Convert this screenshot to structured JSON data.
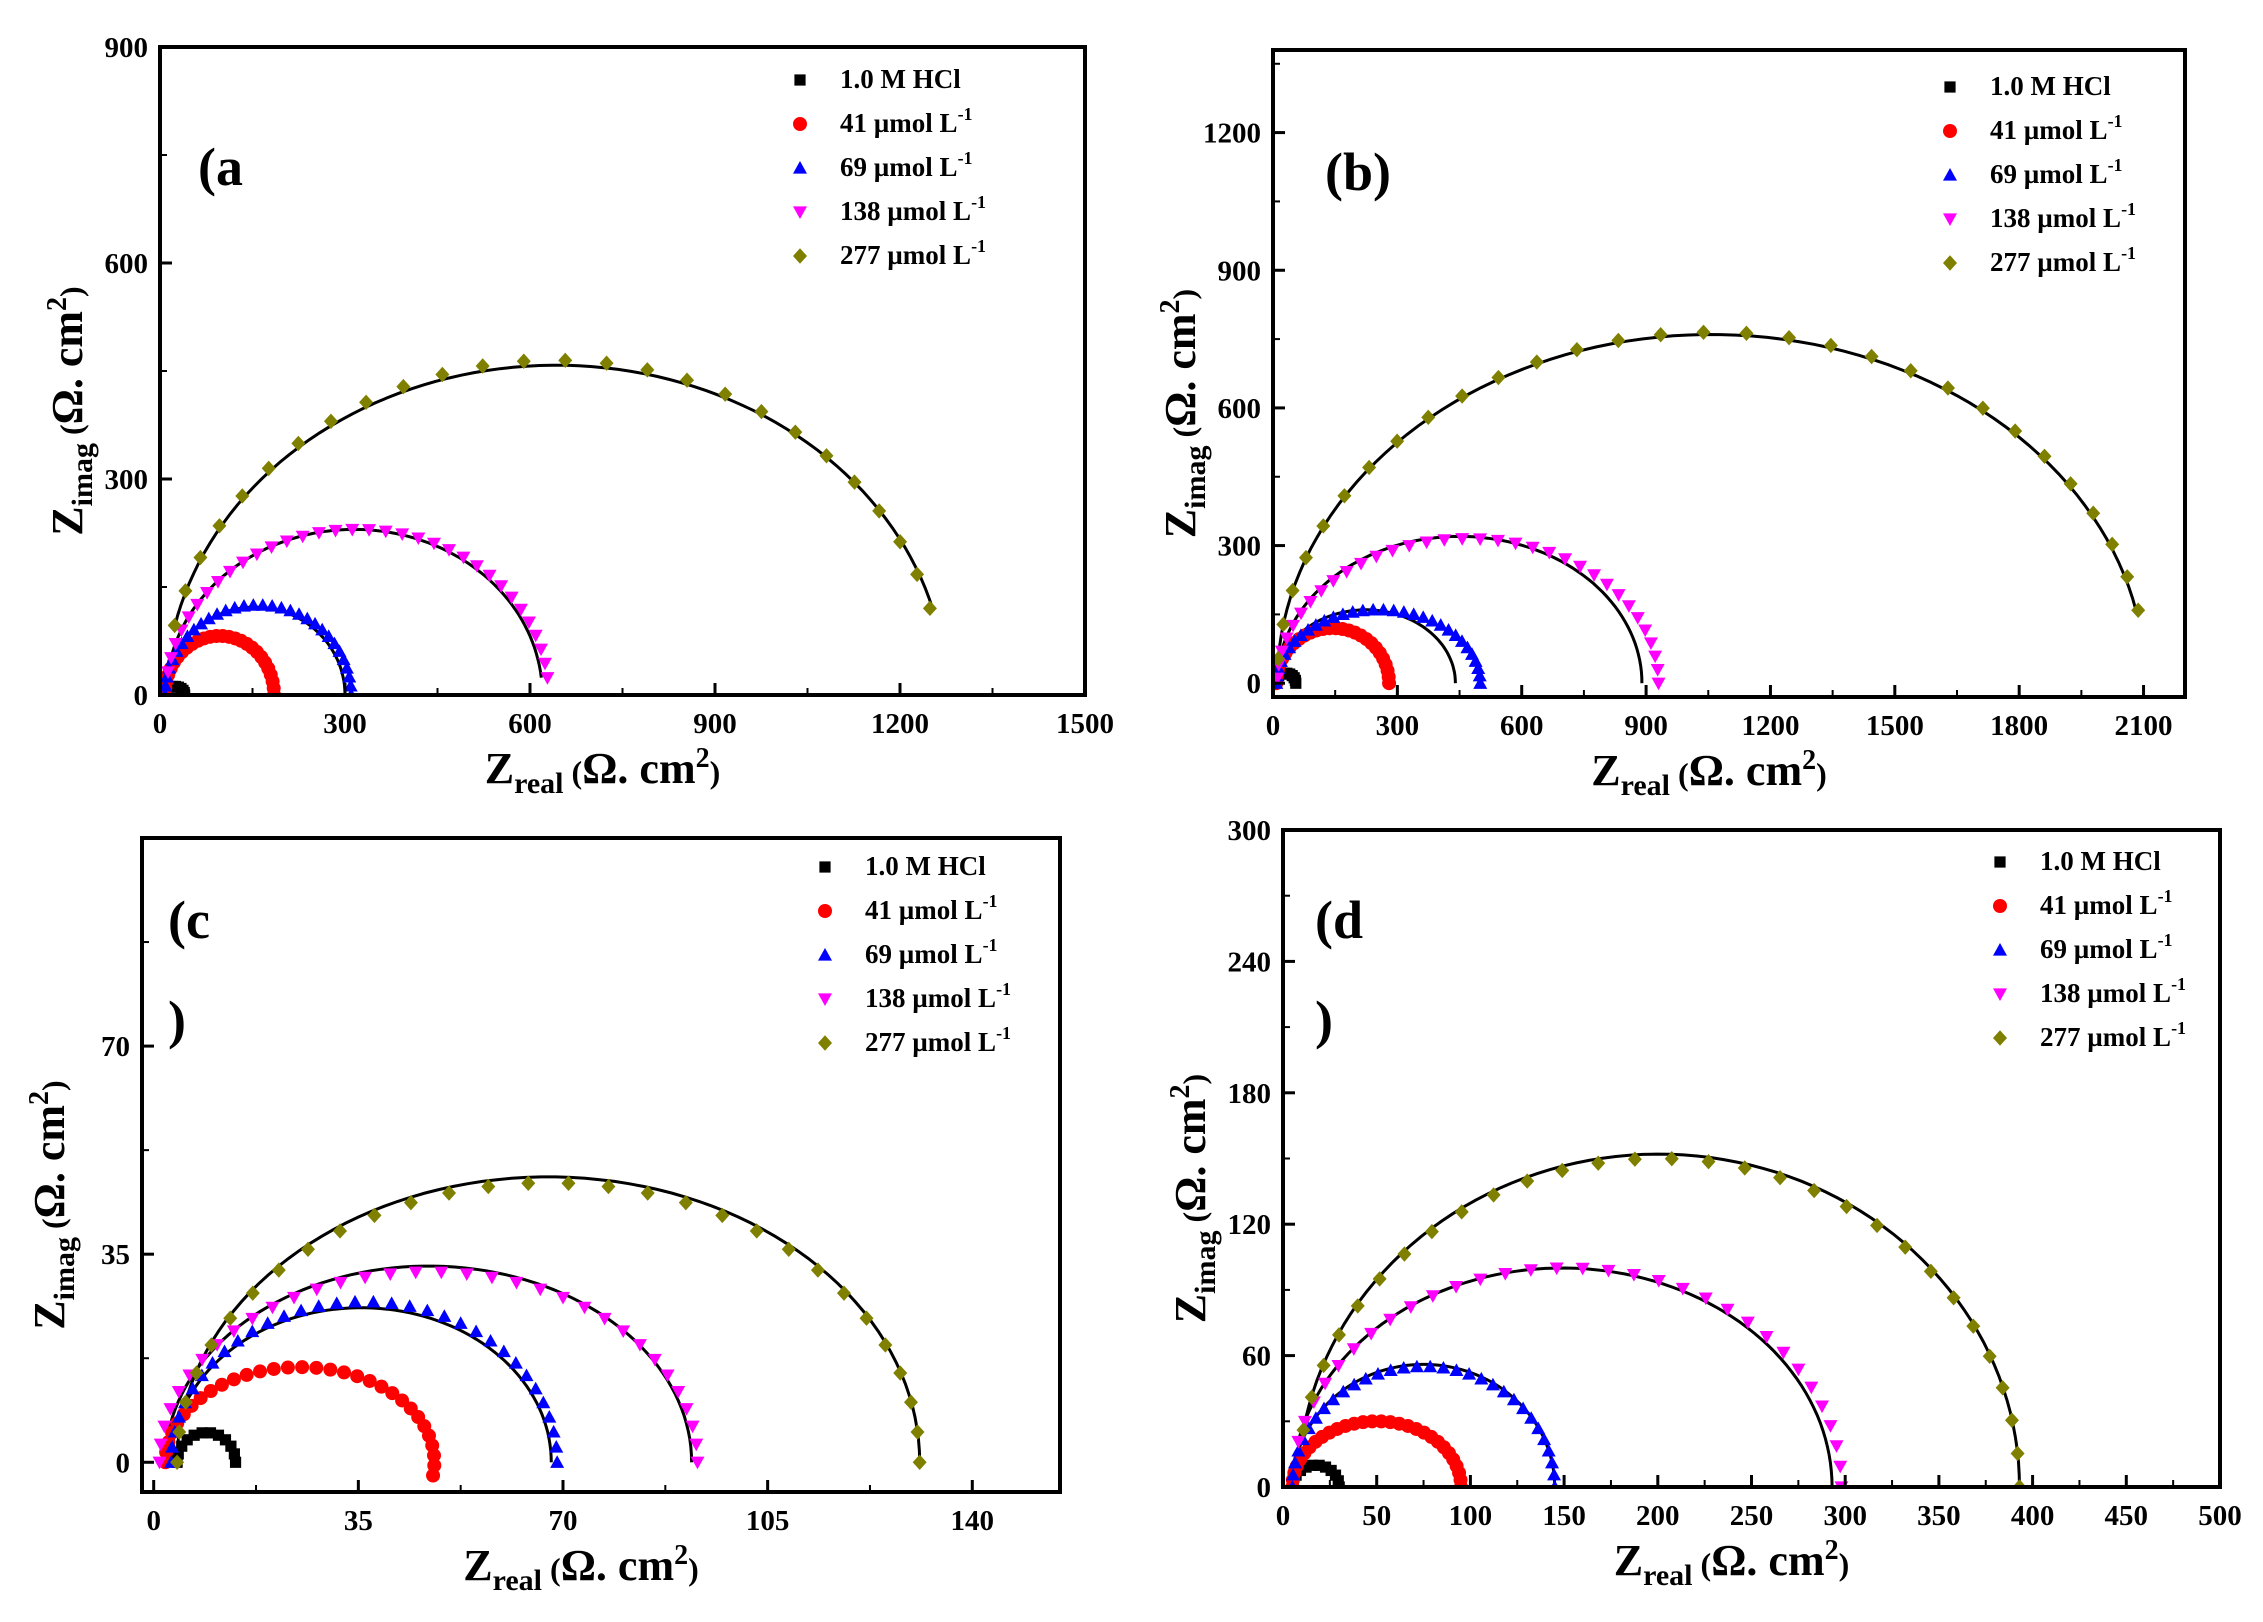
{
  "chart_data": [
    {
      "type": "scatter",
      "panel_label": "(a",
      "xlabel": "Z_real (Ω. cm²)",
      "ylabel": "Z_imag (Ω. cm²)",
      "xlim": [
        0,
        1500
      ],
      "ylim": [
        0,
        900
      ],
      "xticks": [
        0,
        300,
        600,
        900,
        1200,
        1500
      ],
      "yticks": [
        0,
        300,
        600,
        900
      ],
      "legend_position": "top-right",
      "series": [
        {
          "name": "1.0 M HCl",
          "marker": "square",
          "color": "#000000",
          "R0": 5,
          "R": 40,
          "ymax": 12,
          "t0": 0,
          "t1": 180,
          "n": 12
        },
        {
          "name": "41 µmol L⁻¹",
          "marker": "circle",
          "color": "#ff0000",
          "R0": 8,
          "R": 185,
          "ymax": 82,
          "t0": 0,
          "t1": 180,
          "n": 28
        },
        {
          "name": "69 µmol L⁻¹",
          "marker": "triangle-up",
          "color": "#0000ff",
          "R0": 8,
          "R": 310,
          "ymax": 125,
          "t0": 0,
          "t1": 180,
          "n": 32
        },
        {
          "name": "138 µmol L⁻¹",
          "marker": "triangle-down",
          "color": "#ff00ff",
          "R0": 10,
          "R": 630,
          "ymax": 230,
          "t0": 6,
          "t1": 172,
          "n": 34
        },
        {
          "name": "277 µmol L⁻¹",
          "marker": "diamond",
          "color": "#808000",
          "R0": 10,
          "R": 1270,
          "ymax": 465,
          "t0": 15,
          "t1": 168,
          "n": 26
        }
      ],
      "fits": [
        {
          "R0": 8,
          "R": 183,
          "ymax": 80,
          "t0": 0,
          "t1": 180
        },
        {
          "R0": 8,
          "R": 300,
          "ymax": 122,
          "t0": 0,
          "t1": 180
        },
        {
          "R0": 10,
          "R": 620,
          "ymax": 230,
          "t0": 6,
          "t1": 172
        },
        {
          "R0": 10,
          "R": 1275,
          "ymax": 458,
          "t0": 15,
          "t1": 168
        }
      ]
    },
    {
      "type": "scatter",
      "panel_label": "(b)",
      "xlabel": "Z_real (Ω. cm²)",
      "ylabel": "Z_imag (Ω. cm²)",
      "xlim": [
        0,
        2200
      ],
      "ylim": [
        -30,
        1380
      ],
      "xticks": [
        0,
        300,
        600,
        900,
        1200,
        1500,
        1800,
        2100
      ],
      "yticks": [
        0,
        300,
        600,
        900,
        1200
      ],
      "legend_position": "top-right",
      "series": [
        {
          "name": "1.0 M HCl",
          "marker": "square",
          "color": "#000000",
          "R0": 5,
          "R": 55,
          "ymax": 22,
          "t0": 0,
          "t1": 180,
          "n": 12
        },
        {
          "name": "41 µmol L⁻¹",
          "marker": "circle",
          "color": "#ff0000",
          "R0": 8,
          "R": 280,
          "ymax": 120,
          "t0": 0,
          "t1": 180,
          "n": 28
        },
        {
          "name": "69 µmol L⁻¹",
          "marker": "triangle-up",
          "color": "#0000ff",
          "R0": 8,
          "R": 500,
          "ymax": 160,
          "t0": 0,
          "t1": 180,
          "n": 32
        },
        {
          "name": "138 µmol L⁻¹",
          "marker": "triangle-down",
          "color": "#ff00ff",
          "R0": 10,
          "R": 930,
          "ymax": 315,
          "t0": 0,
          "t1": 178,
          "n": 34
        },
        {
          "name": "277 µmol L⁻¹",
          "marker": "diamond",
          "color": "#808000",
          "R0": 10,
          "R": 2110,
          "ymax": 765,
          "t0": 12,
          "t1": 176,
          "n": 30
        }
      ],
      "fits": [
        {
          "R0": 8,
          "R": 275,
          "ymax": 118,
          "t0": 0,
          "t1": 180
        },
        {
          "R0": 8,
          "R": 440,
          "ymax": 160,
          "t0": 0,
          "t1": 180
        },
        {
          "R0": 10,
          "R": 890,
          "ymax": 320,
          "t0": 0,
          "t1": 178
        },
        {
          "R0": 10,
          "R": 2105,
          "ymax": 760,
          "t0": 12,
          "t1": 176
        }
      ]
    },
    {
      "type": "scatter",
      "panel_label": "(c)",
      "xlabel": "Z_real (Ω. cm²)",
      "ylabel": "Z_imag (Ω. cm²)",
      "xlim": [
        -2,
        155
      ],
      "ylim": [
        -5,
        105
      ],
      "xticks": [
        0,
        35,
        70,
        105,
        140
      ],
      "yticks": [
        0,
        35,
        70
      ],
      "legend_position": "top-right",
      "series": [
        {
          "name": "1.0 M HCl",
          "marker": "square",
          "color": "#000000",
          "R0": 4,
          "R": 14,
          "ymax": 5,
          "t0": 0,
          "t1": 180,
          "n": 12
        },
        {
          "name": "41 µmol L⁻¹",
          "marker": "circle",
          "color": "#ff0000",
          "R0": 2,
          "R": 48,
          "ymax": 16,
          "t0": -8,
          "t1": 180,
          "n": 32
        },
        {
          "name": "69 µmol L⁻¹",
          "marker": "triangle-up",
          "color": "#0000ff",
          "R0": 3,
          "R": 69,
          "ymax": 27,
          "t0": 0,
          "t1": 180,
          "n": 34
        },
        {
          "name": "138 µmol L⁻¹",
          "marker": "triangle-down",
          "color": "#ff00ff",
          "R0": 1,
          "R": 93,
          "ymax": 32,
          "t0": 0,
          "t1": 180,
          "n": 34
        },
        {
          "name": "277 µmol L⁻¹",
          "marker": "diamond",
          "color": "#808000",
          "R0": 4,
          "R": 131,
          "ymax": 47,
          "t0": 0,
          "t1": 180,
          "n": 30
        }
      ],
      "fits": [
        {
          "R0": 3,
          "R": 68,
          "ymax": 26,
          "t0": 0,
          "t1": 180
        },
        {
          "R0": 2,
          "R": 92,
          "ymax": 33,
          "t0": 0,
          "t1": 180
        },
        {
          "R0": 4,
          "R": 131,
          "ymax": 48,
          "t0": 0,
          "t1": 180
        }
      ]
    },
    {
      "type": "scatter",
      "panel_label": "(d)",
      "xlabel": "Z_real (Ω. cm²)",
      "ylabel": "Z_imag (Ω. cm²)",
      "xlim": [
        0,
        500
      ],
      "ylim": [
        0,
        300
      ],
      "xticks": [
        0,
        50,
        100,
        150,
        200,
        250,
        300,
        350,
        400,
        450,
        500
      ],
      "yticks": [
        0,
        60,
        120,
        180,
        240,
        300
      ],
      "legend_position": "top-right",
      "series": [
        {
          "name": "1.0 M HCl",
          "marker": "square",
          "color": "#000000",
          "R0": 5,
          "R": 30,
          "ymax": 10,
          "t0": 0,
          "t1": 180,
          "n": 12
        },
        {
          "name": "41 µmol L⁻¹",
          "marker": "circle",
          "color": "#ff0000",
          "R0": 5,
          "R": 95,
          "ymax": 30,
          "t0": 0,
          "t1": 180,
          "n": 30
        },
        {
          "name": "69 µmol L⁻¹",
          "marker": "triangle-up",
          "color": "#0000ff",
          "R0": 5,
          "R": 145,
          "ymax": 55,
          "t0": 0,
          "t1": 180,
          "n": 32
        },
        {
          "name": "138 µmol L⁻¹",
          "marker": "triangle-down",
          "color": "#ff00ff",
          "R0": 5,
          "R": 298,
          "ymax": 100,
          "t0": 0,
          "t1": 168,
          "n": 32
        },
        {
          "name": "277 µmol L⁻¹",
          "marker": "diamond",
          "color": "#808000",
          "R0": 8,
          "R": 393,
          "ymax": 150,
          "t0": 0,
          "t1": 170,
          "n": 30
        }
      ],
      "fits": [
        {
          "R0": 5,
          "R": 95,
          "ymax": 30,
          "t0": 0,
          "t1": 180
        },
        {
          "R0": 5,
          "R": 145,
          "ymax": 56,
          "t0": 0,
          "t1": 180
        },
        {
          "R0": 5,
          "R": 293,
          "ymax": 100,
          "t0": 0,
          "t1": 168
        },
        {
          "R0": 8,
          "R": 393,
          "ymax": 152,
          "t0": 0,
          "t1": 170
        }
      ]
    }
  ]
}
